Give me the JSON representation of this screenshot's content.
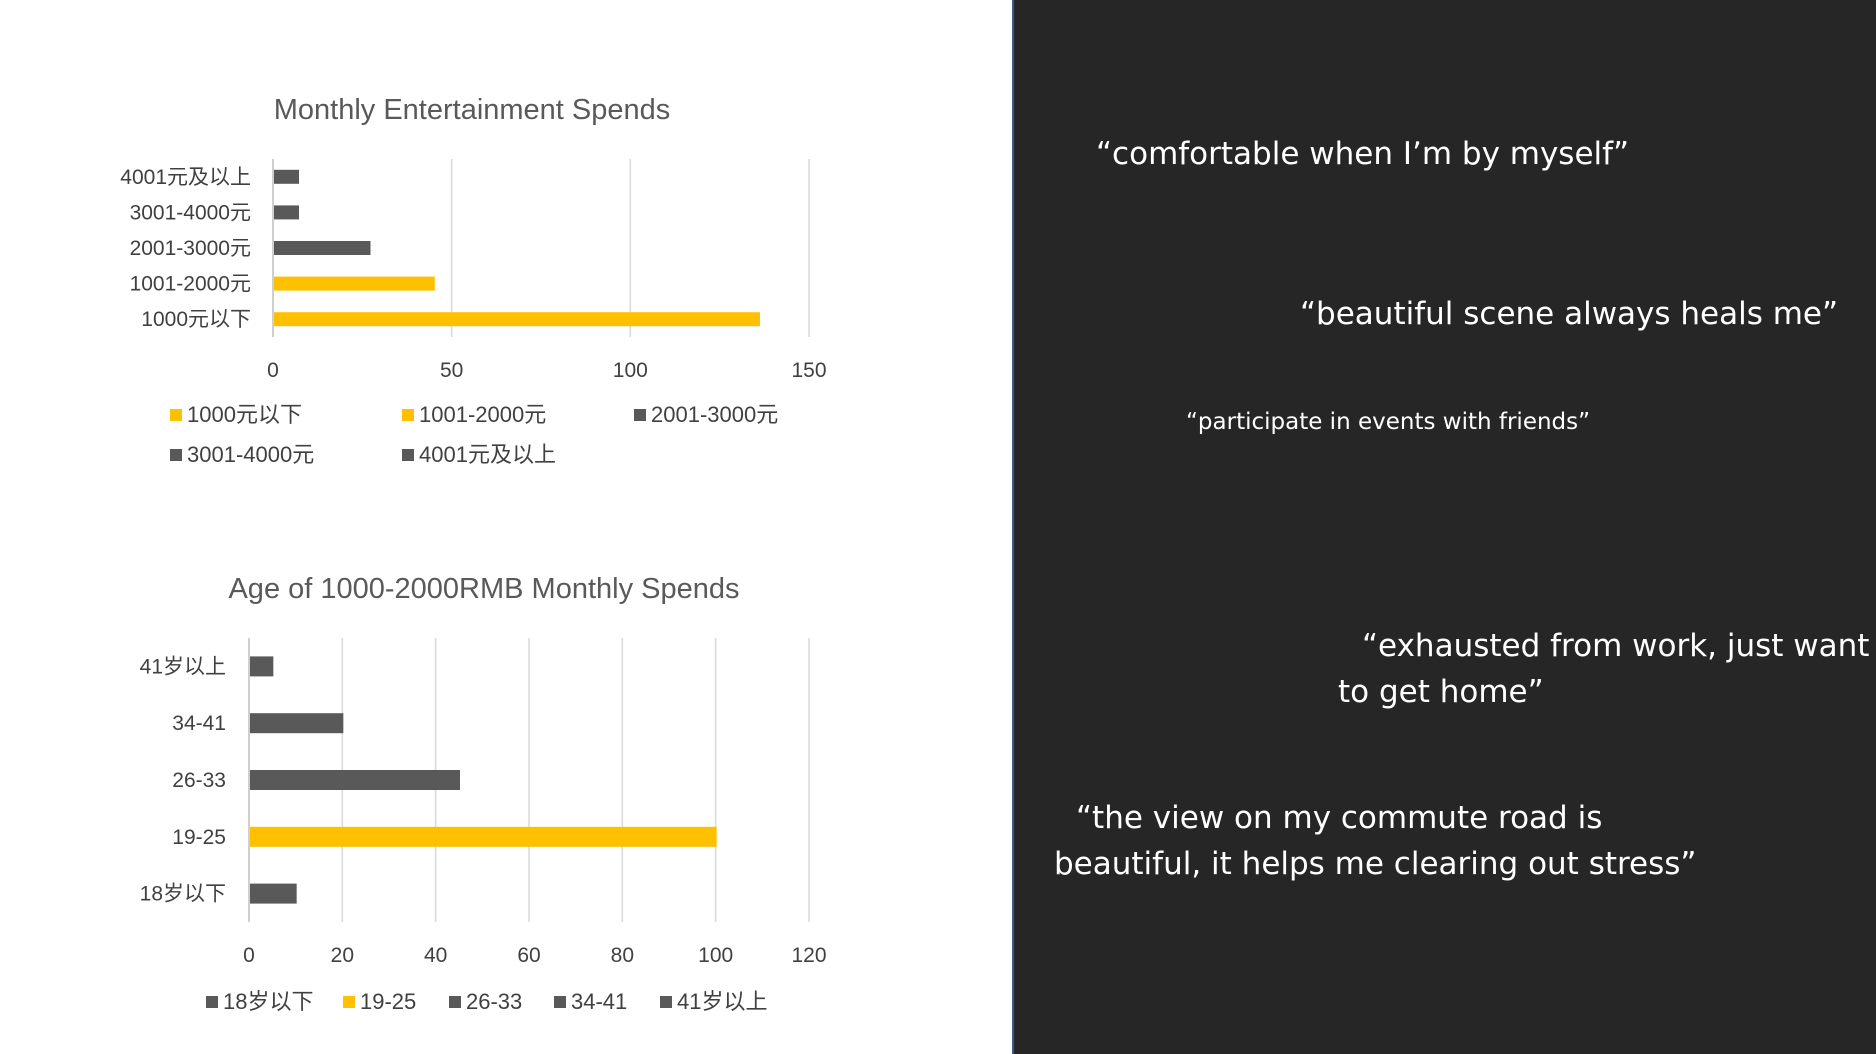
{
  "colors": {
    "highlight": "#FFC000",
    "default_bar": "#595959",
    "dark_panel": "#262626"
  },
  "chart_data": [
    {
      "type": "bar",
      "orientation": "horizontal",
      "title": "Monthly Entertainment Spends",
      "categories": [
        "4001元及以上",
        "3001-4000元",
        "2001-3000元",
        "1001-2000元",
        "1000元以下"
      ],
      "values": [
        7,
        7,
        27,
        45,
        136
      ],
      "bar_colors": [
        "#595959",
        "#595959",
        "#595959",
        "#FFC000",
        "#FFC000"
      ],
      "xlim": [
        0,
        150
      ],
      "x_ticks": [
        0,
        50,
        100,
        150
      ],
      "grid": true,
      "legend": {
        "placement": "bottom",
        "entries": [
          {
            "label": "1000元以下",
            "color": "#FFC000"
          },
          {
            "label": "1001-2000元",
            "color": "#FFC000"
          },
          {
            "label": "2001-3000元",
            "color": "#595959"
          },
          {
            "label": "3001-4000元",
            "color": "#595959"
          },
          {
            "label": "4001元及以上",
            "color": "#595959"
          }
        ]
      }
    },
    {
      "type": "bar",
      "orientation": "horizontal",
      "title": "Age of 1000-2000RMB Monthly Spends",
      "categories": [
        "41岁以上",
        "34-41",
        "26-33",
        "19-25",
        "18岁以下"
      ],
      "values": [
        5,
        20,
        45,
        100,
        10
      ],
      "bar_colors": [
        "#595959",
        "#595959",
        "#595959",
        "#FFC000",
        "#595959"
      ],
      "xlim": [
        0,
        120
      ],
      "x_ticks": [
        0,
        20,
        40,
        60,
        80,
        100,
        120
      ],
      "grid": true,
      "legend": {
        "placement": "bottom",
        "entries": [
          {
            "label": "18岁以下",
            "color": "#595959"
          },
          {
            "label": "19-25",
            "color": "#FFC000"
          },
          {
            "label": "26-33",
            "color": "#595959"
          },
          {
            "label": "34-41",
            "color": "#595959"
          },
          {
            "label": "41岁以上",
            "color": "#595959"
          }
        ]
      }
    }
  ],
  "quotes": [
    "“comfortable when I’m by myself”",
    "“beautiful scene always heals me”",
    "“participate in events with friends”",
    "“exhausted from work, just want",
    "to get home”",
    "“the view on my commute road is",
    "beautiful, it helps me clearing out stress”"
  ]
}
